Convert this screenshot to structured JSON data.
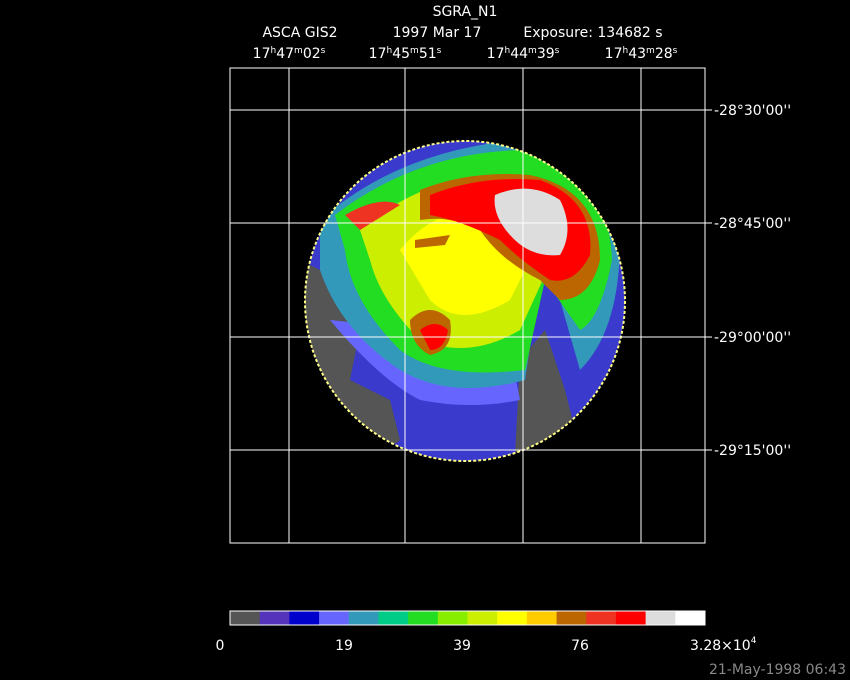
{
  "header": {
    "title": "SGRA_N1",
    "instrument": "ASCA GIS2",
    "date": "1997 Mar 17",
    "exposure": "Exposure: 134682 s"
  },
  "ra_labels": [
    [
      "17",
      "h",
      "47",
      "m",
      "02",
      "s"
    ],
    [
      "17",
      "h",
      "45",
      "m",
      "51",
      "s"
    ],
    [
      "17",
      "h",
      "44",
      "m",
      "39",
      "s"
    ],
    [
      "17",
      "h",
      "43",
      "m",
      "28",
      "s"
    ]
  ],
  "dec_labels": [
    "-28°30'00''",
    "-28°45'00''",
    "-29°00'00''",
    "-29°15'00''"
  ],
  "colorbar": {
    "labels": [
      "0",
      "19",
      "39",
      "76"
    ],
    "max_label": [
      "3.28×10",
      "4"
    ]
  },
  "footer": {
    "timestamp": "21-May-1998 06:43"
  }
}
